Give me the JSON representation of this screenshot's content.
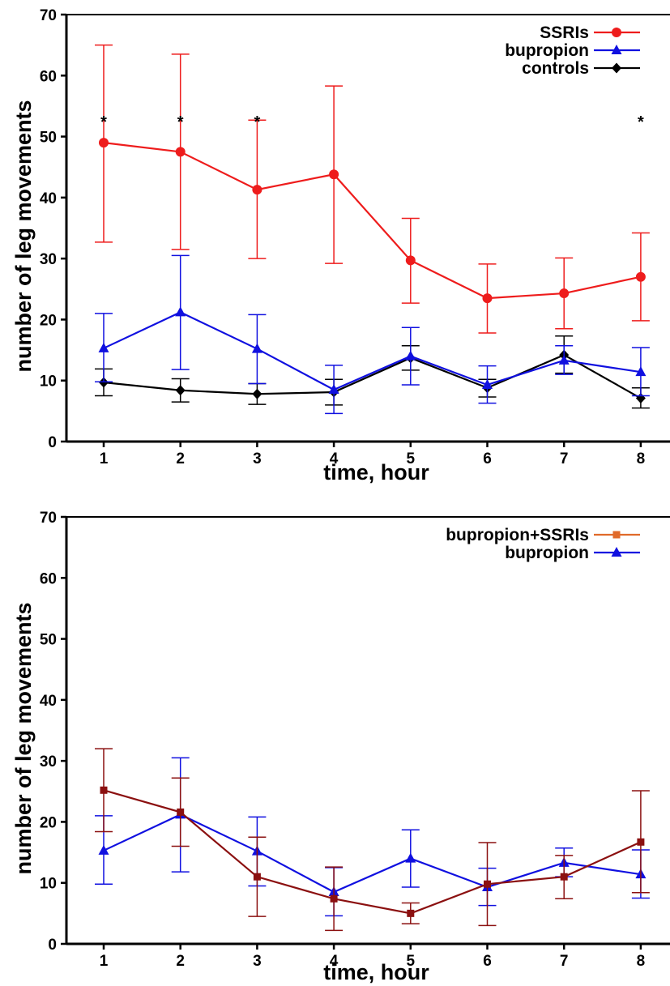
{
  "chart_data": [
    {
      "type": "line",
      "title": "",
      "xlabel": "time, hour",
      "ylabel": "number of leg movements",
      "ylim": [
        0,
        70
      ],
      "yticks": [
        "0",
        "10",
        "20",
        "30",
        "40",
        "50",
        "60",
        "70"
      ],
      "x": [
        1,
        2,
        3,
        4,
        5,
        6,
        7,
        8
      ],
      "xticks": [
        "1",
        "2",
        "3",
        "4",
        "5",
        "6",
        "7",
        "8"
      ],
      "grid": false,
      "legend_position": "top-right",
      "significance_marker": "*",
      "significance_at": [
        1,
        2,
        3,
        8
      ],
      "series": [
        {
          "name": "SSRIs",
          "color": "#ee1c1c",
          "marker": "circle",
          "values": [
            49,
            47.5,
            41.3,
            43.8,
            29.7,
            23.5,
            24.3,
            27
          ],
          "error_upper": [
            65,
            63.5,
            52.7,
            58.3,
            36.6,
            29.1,
            30.1,
            34.2
          ],
          "error_lower": [
            32.7,
            31.5,
            30,
            29.2,
            22.7,
            17.8,
            18.5,
            19.8
          ]
        },
        {
          "name": "bupropion",
          "color": "#1010e0",
          "marker": "triangle",
          "values": [
            15.3,
            21.2,
            15.2,
            8.5,
            14,
            9.3,
            13.3,
            11.4
          ],
          "error_upper": [
            21,
            30.5,
            20.8,
            12.5,
            18.7,
            12.4,
            15.7,
            15.4
          ],
          "error_lower": [
            9.8,
            11.8,
            9.5,
            4.6,
            9.3,
            6.3,
            11,
            7.5
          ]
        },
        {
          "name": "controls",
          "color": "#000000",
          "marker": "diamond",
          "values": [
            9.7,
            8.4,
            7.8,
            8.1,
            13.7,
            8.8,
            14.2,
            7.1
          ],
          "error_upper": [
            11.9,
            10.3,
            9.5,
            10.2,
            15.7,
            10.2,
            17.3,
            8.8
          ],
          "error_lower": [
            7.5,
            6.5,
            6.1,
            6,
            11.7,
            7.3,
            11.2,
            5.5
          ]
        }
      ]
    },
    {
      "type": "line",
      "title": "",
      "xlabel": "time, hour",
      "ylabel": "number of leg movements",
      "ylim": [
        0,
        70
      ],
      "yticks": [
        "0",
        "10",
        "20",
        "30",
        "40",
        "50",
        "60",
        "70"
      ],
      "x": [
        1,
        2,
        3,
        4,
        5,
        6,
        7,
        8
      ],
      "xticks": [
        "1",
        "2",
        "3",
        "4",
        "5",
        "6",
        "7",
        "8"
      ],
      "grid": false,
      "legend_position": "top-right",
      "series": [
        {
          "name": "bupropion+SSRIs",
          "color": "#8b1010",
          "legend_color": "#e06a2a",
          "marker": "square",
          "values": [
            25.2,
            21.6,
            11,
            7.4,
            5,
            9.8,
            11,
            16.7
          ],
          "error_upper": [
            32,
            27.2,
            17.5,
            12.6,
            6.7,
            16.6,
            14.5,
            25.1
          ],
          "error_lower": [
            18.4,
            16,
            4.5,
            2.2,
            3.3,
            3,
            7.4,
            8.4
          ]
        },
        {
          "name": "bupropion",
          "color": "#1010e0",
          "marker": "triangle",
          "values": [
            15.3,
            21.2,
            15.2,
            8.5,
            14,
            9.3,
            13.3,
            11.4
          ],
          "error_upper": [
            21,
            30.5,
            20.8,
            12.5,
            18.7,
            12.4,
            15.7,
            15.4
          ],
          "error_lower": [
            9.8,
            11.8,
            9.5,
            4.6,
            9.3,
            6.3,
            11,
            7.5
          ]
        }
      ]
    }
  ]
}
